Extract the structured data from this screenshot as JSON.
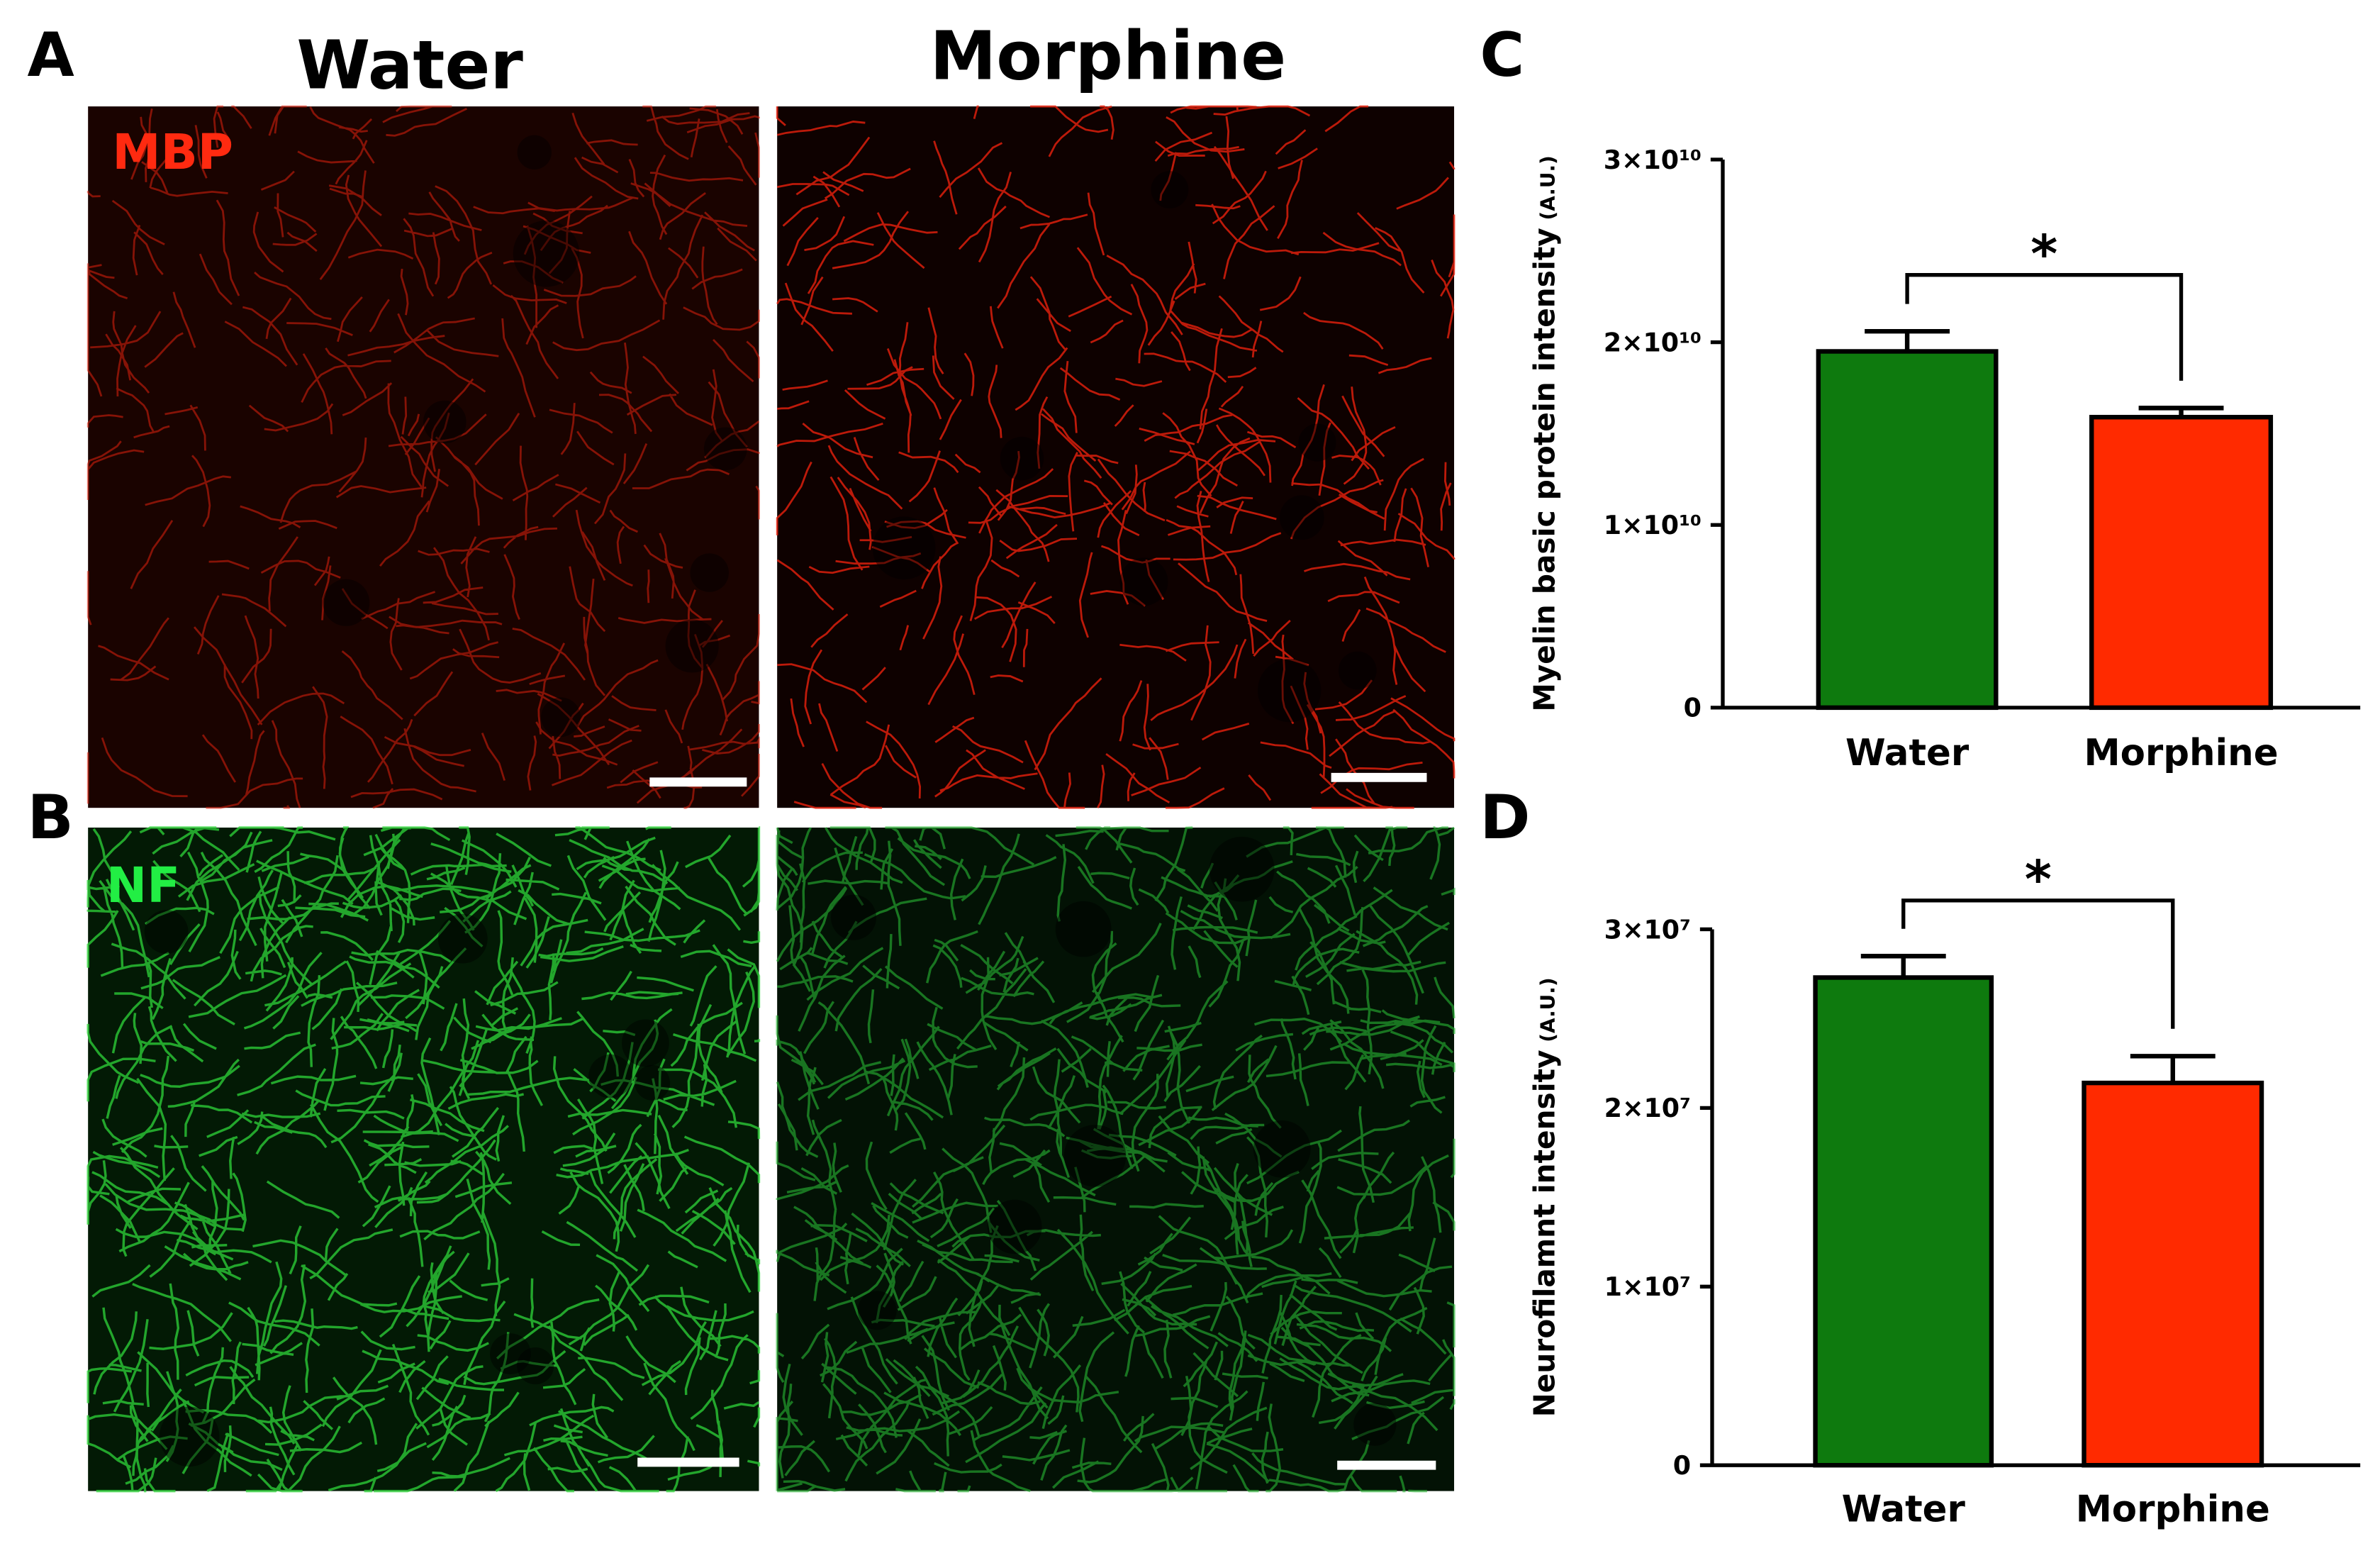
{
  "panel_labels": [
    "A",
    "B",
    "C",
    "D"
  ],
  "column_titles": [
    "Water",
    "Morphine"
  ],
  "row_labels": [
    "MBP",
    "NF"
  ],
  "chart_data": [
    {
      "type": "bar",
      "categories": [
        "Water",
        "Morphine"
      ],
      "values": [
        19500000000,
        15900000000
      ],
      "errors": [
        1100000000,
        500000000
      ],
      "colors": [
        "#0e7a0e",
        "#ff2a00"
      ],
      "ylim": [
        0,
        30000000000
      ],
      "yticks": [
        0,
        {
          "value": 10000000000,
          "label": "1×10¹⁰"
        },
        {
          "value": 20000000000,
          "label": "2×10¹⁰"
        },
        {
          "value": 30000000000,
          "label": "3×10¹⁰"
        }
      ],
      "ylabel": "Myelin basic protein intensity",
      "ylabel_unit": "(A.U.)",
      "annotation": "*"
    },
    {
      "type": "bar",
      "categories": [
        "Water",
        "Morphine"
      ],
      "values": [
        27300000,
        21400000
      ],
      "errors": [
        1200000,
        1500000
      ],
      "colors": [
        "#0e7a0e",
        "#ff2a00"
      ],
      "ylim": [
        0,
        30000000
      ],
      "yticks": [
        0,
        {
          "value": 10000000,
          "label": "1×10⁷"
        },
        {
          "value": 20000000,
          "label": "2×10⁷"
        },
        {
          "value": 30000000,
          "label": "3×10⁷"
        }
      ],
      "ylabel": "Neurofilamnt intensity",
      "ylabel_unit": "(A.U.)",
      "annotation": "*"
    }
  ]
}
